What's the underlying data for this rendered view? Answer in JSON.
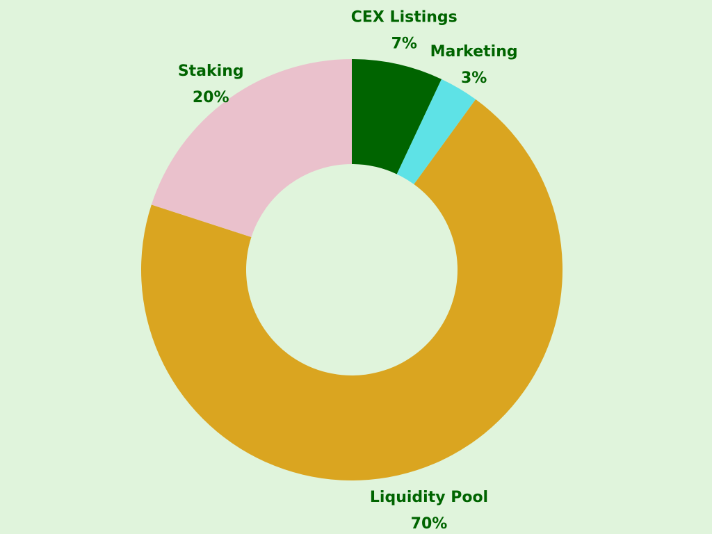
{
  "background": "#e0f4dc",
  "label_color": "#006400",
  "chart_data": {
    "type": "pie",
    "donut": true,
    "start_angle_deg": 0,
    "direction": "clockwise",
    "slices": [
      {
        "name": "CEX Listings",
        "value": 7,
        "pct_label": "7%",
        "color": "#006400"
      },
      {
        "name": "Marketing",
        "value": 3,
        "pct_label": "3%",
        "color": "#5ee2e6"
      },
      {
        "name": "Liquidity Pool",
        "value": 70,
        "pct_label": "70%",
        "color": "#daa520"
      },
      {
        "name": "Staking",
        "value": 20,
        "pct_label": "20%",
        "color": "#eac1cc"
      }
    ]
  }
}
